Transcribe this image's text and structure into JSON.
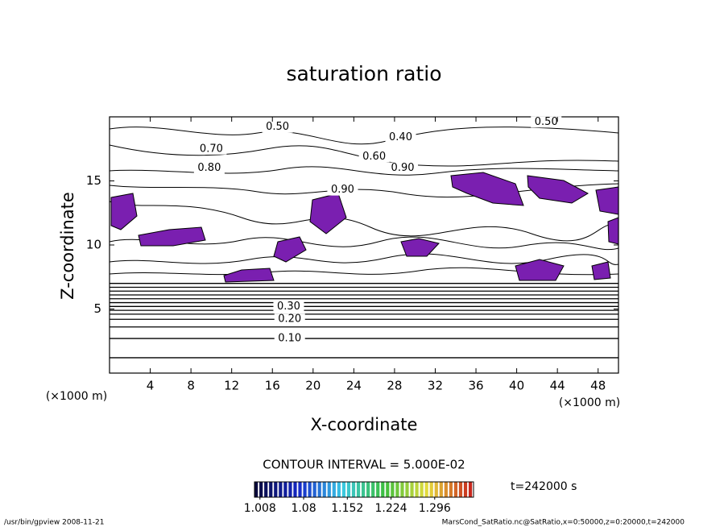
{
  "chart_data": {
    "type": "contour",
    "title": "saturation ratio",
    "x_label": "X-coordinate",
    "y_label": "Z-coordinate",
    "x_unit": "(×1000 m)",
    "y_unit": "(×1000 m)",
    "xlim": [
      0,
      50
    ],
    "ylim": [
      0,
      20
    ],
    "xticks": [
      4,
      8,
      12,
      16,
      20,
      24,
      28,
      32,
      36,
      40,
      44,
      48
    ],
    "yticks": [
      5,
      10,
      15
    ],
    "level_z": [
      1.2,
      2.7,
      3.6,
      4.2,
      4.6,
      4.9,
      5.2,
      5.5,
      5.8,
      6.1,
      6.4,
      6.7,
      7.0
    ],
    "contour_labels": [
      {
        "label": "0.10",
        "x": 17.7,
        "z": 2.7
      },
      {
        "label": "0.20",
        "x": 17.7,
        "z": 4.2
      },
      {
        "label": "0.30",
        "x": 17.6,
        "z": 5.2
      },
      {
        "label": "0.50",
        "x": 16.5,
        "z": 19.2
      },
      {
        "label": "0.40",
        "x": 28.6,
        "z": 18.4
      },
      {
        "label": "0.70",
        "x": 10,
        "z": 17.5
      },
      {
        "label": "0.80",
        "x": 9.8,
        "z": 16
      },
      {
        "label": "0.60",
        "x": 26,
        "z": 16.9
      },
      {
        "label": "0.90",
        "x": 28.8,
        "z": 16
      },
      {
        "label": "0.50",
        "x": 42.9,
        "z": 19.6
      },
      {
        "label": "0.90",
        "x": 22.9,
        "z": 14.3
      }
    ],
    "contour_interval": "CONTOUR INTERVAL = 5.000E-02",
    "time_label": "t=242000 s",
    "colorbar": {
      "lim": [
        0.999,
        1.36
      ],
      "ticks": [
        1.008,
        1.08,
        1.152,
        1.224,
        1.296
      ]
    },
    "footer_left": "/usr/bin/gpview  2008-11-21",
    "footer_right": "MarsCond_SatRatio.nc@SatRatio,x=0:50000,z=0:20000,t=242000"
  }
}
